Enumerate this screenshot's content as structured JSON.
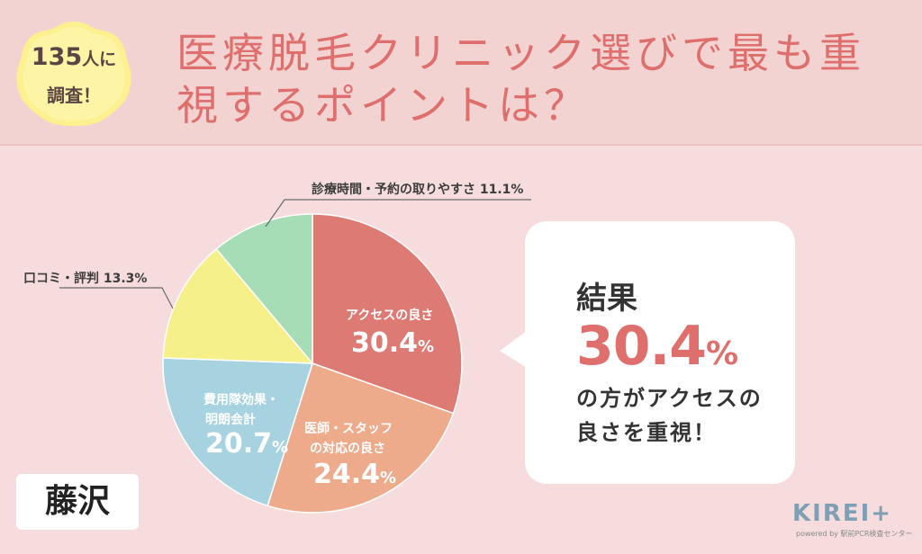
{
  "badge": {
    "line1_number": "135",
    "line1_suffix": "人に",
    "line2": "調査！"
  },
  "title": "医療脱毛クリニック選びで最も重視するポイントは？",
  "chart_data": {
    "type": "pie",
    "slices": [
      {
        "label": "アクセスの良さ",
        "value": 30.4,
        "value_label": "30.4",
        "color": "#de7a74"
      },
      {
        "label": "医師・スタッフの対応の良さ",
        "value": 24.4,
        "value_label": "24.4",
        "color": "#eeab8c"
      },
      {
        "label": "費用隊効果・明朗会計",
        "value": 20.7,
        "value_label": "20.7",
        "color": "#a6d3df"
      },
      {
        "label": "口コミ・評判",
        "value": 13.3,
        "value_label": "13.3",
        "color": "#f5f08a"
      },
      {
        "label": "診療時間・予約の取りやすさ",
        "value": 11.1,
        "value_label": "11.1",
        "color": "#a6ddb6"
      }
    ],
    "inside_labels": {
      "access_1": "アクセスの良さ",
      "staff_1": "医師・スタッフ",
      "staff_2": "の対応の良さ",
      "cost_1": "費用隊効果・",
      "cost_2": "明朗会計"
    },
    "outside_labels": {
      "reviews": "口コミ・評判 13.3%",
      "hours": "診療時間・予約の取りやすさ 11.1%"
    },
    "percent_sign": "%"
  },
  "result": {
    "label": "結果",
    "value": "30.4",
    "percent": "%",
    "line1": "の方がアクセスの",
    "line2": "良さを重視！"
  },
  "city": "藤沢",
  "logo": {
    "main": "KIREI+",
    "sub": "powered by 駅前PCR検査センター"
  }
}
